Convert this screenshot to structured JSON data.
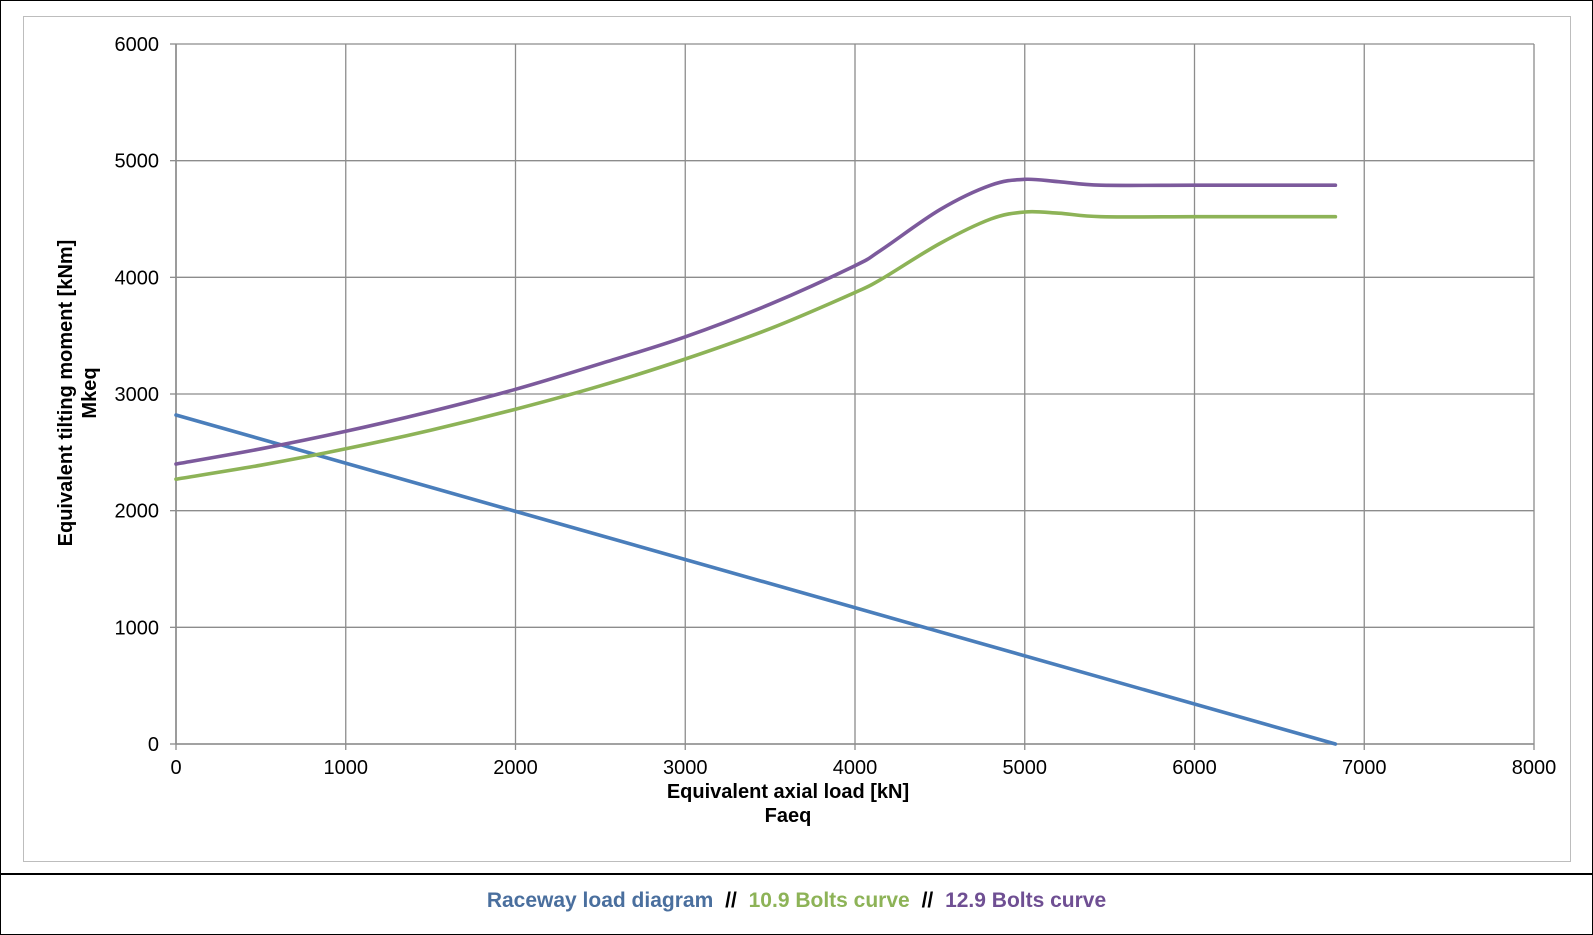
{
  "chart_data": {
    "type": "line",
    "xlabel": "Equivalent axial load [kN]",
    "xlabel_sub": "Faeq",
    "ylabel": "Equivalent tilting moment [kNm]",
    "ylabel_sub": "Mkeq",
    "xlim": [
      0,
      8000
    ],
    "ylim": [
      0,
      6000
    ],
    "x_ticks": [
      "0",
      "1000",
      "2000",
      "3000",
      "4000",
      "5000",
      "6000",
      "7000",
      "8000"
    ],
    "y_ticks": [
      "0",
      "1000",
      "2000",
      "3000",
      "4000",
      "5000",
      "6000"
    ],
    "grid": true,
    "series": [
      {
        "name": "Raceway load diagram",
        "color": "#4a7ebb",
        "x": [
          0,
          6830
        ],
        "y": [
          2820,
          0
        ]
      },
      {
        "name": "10.9 Bolts curve",
        "color": "#8db357",
        "x": [
          0,
          500,
          1000,
          1500,
          2000,
          2500,
          3000,
          3500,
          4000,
          4150,
          4500,
          4800,
          5000,
          5200,
          5450,
          6000,
          6500,
          6830
        ],
        "y": [
          2270,
          2390,
          2530,
          2690,
          2870,
          3070,
          3300,
          3560,
          3870,
          3980,
          4290,
          4500,
          4560,
          4550,
          4520,
          4520,
          4520,
          4520
        ]
      },
      {
        "name": "12.9 Bolts curve",
        "color": "#7c5a9c",
        "x": [
          0,
          500,
          1000,
          1500,
          2000,
          2500,
          3000,
          3500,
          4000,
          4150,
          4500,
          4800,
          5000,
          5200,
          5450,
          6000,
          6500,
          6830
        ],
        "y": [
          2400,
          2530,
          2680,
          2850,
          3040,
          3260,
          3490,
          3770,
          4100,
          4230,
          4580,
          4790,
          4840,
          4820,
          4790,
          4790,
          4790,
          4790
        ]
      }
    ]
  },
  "legend": {
    "separator": "//"
  }
}
